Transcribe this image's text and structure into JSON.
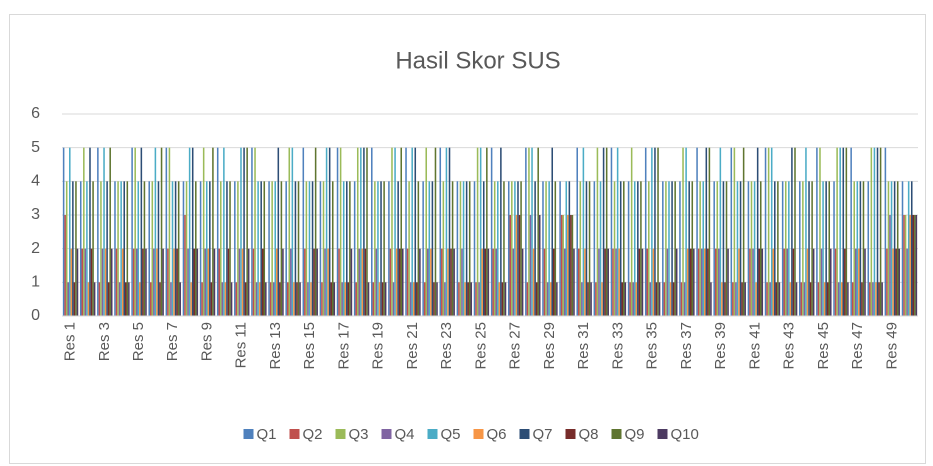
{
  "chart_data": {
    "type": "bar",
    "title": "Hasil Skor SUS",
    "categories": [
      "Res 1",
      null,
      "Res 3",
      null,
      "Res 5",
      null,
      "Res 7",
      null,
      "Res 9",
      null,
      "Res 11",
      null,
      "Res 13",
      null,
      "Res 15",
      null,
      "Res 17",
      null,
      "Res 19",
      null,
      "Res 21",
      null,
      "Res 23",
      null,
      "Res 25",
      null,
      "Res 27",
      null,
      "Res 29",
      null,
      "Res 31",
      null,
      "Res 33",
      null,
      "Res 35",
      null,
      "Res 37",
      null,
      "Res 39",
      null,
      "Res 41",
      null,
      "Res 43",
      null,
      "Res 45",
      null,
      "Res 47",
      null,
      "Res 49",
      null
    ],
    "series": [
      {
        "name": "Q1",
        "color": "#4f81bd",
        "values": [
          5,
          4,
          5,
          4,
          5,
          4,
          5,
          4,
          4,
          5,
          4,
          5,
          4,
          4,
          5,
          4,
          5,
          4,
          5,
          4,
          5,
          4,
          5,
          4,
          4,
          5,
          4,
          5,
          4,
          4,
          5,
          4,
          5,
          4,
          5,
          4,
          4,
          5,
          4,
          5,
          4,
          5,
          4,
          4,
          5,
          4,
          5,
          4,
          5,
          4
        ]
      },
      {
        "name": "Q2",
        "color": "#c0504d",
        "values": [
          3,
          2,
          1,
          2,
          2,
          1,
          2,
          3,
          1,
          2,
          1,
          2,
          1,
          1,
          2,
          1,
          2,
          1,
          1,
          2,
          2,
          1,
          2,
          1,
          1,
          2,
          3,
          1,
          2,
          3,
          2,
          1,
          2,
          1,
          2,
          1,
          1,
          2,
          2,
          1,
          2,
          1,
          2,
          1,
          1,
          2,
          1,
          1,
          2,
          3
        ]
      },
      {
        "name": "Q3",
        "color": "#9bbb59",
        "values": [
          4,
          5,
          4,
          4,
          5,
          4,
          5,
          4,
          5,
          4,
          4,
          5,
          4,
          5,
          4,
          4,
          5,
          5,
          4,
          5,
          4,
          5,
          4,
          4,
          5,
          4,
          4,
          5,
          4,
          3,
          4,
          5,
          4,
          5,
          4,
          4,
          5,
          4,
          4,
          5,
          4,
          5,
          4,
          4,
          5,
          5,
          4,
          5,
          4,
          3
        ]
      },
      {
        "name": "Q4",
        "color": "#8064a2",
        "values": [
          1,
          2,
          2,
          1,
          2,
          2,
          1,
          2,
          2,
          1,
          2,
          1,
          1,
          2,
          1,
          2,
          1,
          2,
          2,
          1,
          1,
          2,
          1,
          2,
          1,
          2,
          2,
          3,
          1,
          2,
          1,
          2,
          2,
          1,
          1,
          2,
          1,
          2,
          2,
          1,
          2,
          1,
          2,
          1,
          2,
          1,
          2,
          1,
          3,
          2
        ]
      },
      {
        "name": "Q5",
        "color": "#4bacc6",
        "values": [
          5,
          4,
          5,
          4,
          4,
          5,
          4,
          5,
          4,
          5,
          5,
          4,
          4,
          5,
          4,
          5,
          4,
          5,
          4,
          5,
          5,
          4,
          5,
          4,
          5,
          4,
          4,
          5,
          4,
          4,
          5,
          4,
          5,
          4,
          5,
          4,
          5,
          4,
          5,
          4,
          4,
          5,
          4,
          5,
          4,
          5,
          4,
          5,
          4,
          4
        ]
      },
      {
        "name": "Q6",
        "color": "#f79646",
        "values": [
          2,
          1,
          2,
          2,
          1,
          2,
          2,
          1,
          2,
          1,
          2,
          1,
          2,
          1,
          1,
          2,
          1,
          2,
          1,
          2,
          1,
          2,
          2,
          1,
          2,
          1,
          3,
          2,
          1,
          3,
          2,
          1,
          2,
          1,
          2,
          1,
          2,
          2,
          1,
          2,
          1,
          2,
          1,
          2,
          1,
          1,
          2,
          1,
          2,
          3
        ]
      },
      {
        "name": "Q7",
        "color": "#2c4d75",
        "values": [
          4,
          5,
          4,
          4,
          5,
          4,
          4,
          5,
          4,
          4,
          5,
          4,
          5,
          4,
          4,
          5,
          4,
          5,
          4,
          4,
          5,
          4,
          5,
          4,
          4,
          5,
          4,
          4,
          5,
          4,
          4,
          5,
          4,
          4,
          5,
          4,
          4,
          5,
          4,
          4,
          5,
          4,
          5,
          4,
          4,
          5,
          4,
          5,
          4,
          4
        ]
      },
      {
        "name": "Q8",
        "color": "#772c2a",
        "values": [
          1,
          2,
          1,
          1,
          2,
          1,
          2,
          2,
          1,
          2,
          1,
          2,
          1,
          1,
          2,
          1,
          1,
          2,
          1,
          2,
          1,
          1,
          2,
          1,
          2,
          1,
          3,
          1,
          2,
          3,
          1,
          2,
          1,
          2,
          1,
          1,
          2,
          2,
          1,
          1,
          2,
          1,
          2,
          1,
          1,
          2,
          1,
          1,
          2,
          3
        ]
      },
      {
        "name": "Q9",
        "color": "#5f7530",
        "values": [
          4,
          4,
          5,
          4,
          4,
          5,
          4,
          4,
          5,
          4,
          5,
          4,
          4,
          4,
          5,
          4,
          4,
          5,
          4,
          5,
          4,
          5,
          4,
          4,
          5,
          4,
          4,
          5,
          4,
          3,
          4,
          5,
          4,
          4,
          5,
          4,
          4,
          5,
          4,
          5,
          4,
          4,
          5,
          4,
          4,
          5,
          4,
          5,
          4,
          3
        ]
      },
      {
        "name": "Q10",
        "color": "#4d3b62",
        "values": [
          2,
          1,
          2,
          1,
          2,
          2,
          1,
          2,
          2,
          1,
          2,
          1,
          2,
          1,
          2,
          1,
          2,
          1,
          1,
          2,
          2,
          1,
          2,
          1,
          2,
          1,
          2,
          3,
          1,
          2,
          1,
          2,
          1,
          2,
          1,
          2,
          2,
          1,
          2,
          1,
          2,
          1,
          1,
          2,
          2,
          1,
          2,
          1,
          2,
          3
        ]
      }
    ],
    "ylim": [
      0,
      6
    ],
    "yticks": [
      0,
      1,
      2,
      3,
      4,
      5,
      6
    ],
    "grid": true,
    "legend": "bottom"
  }
}
